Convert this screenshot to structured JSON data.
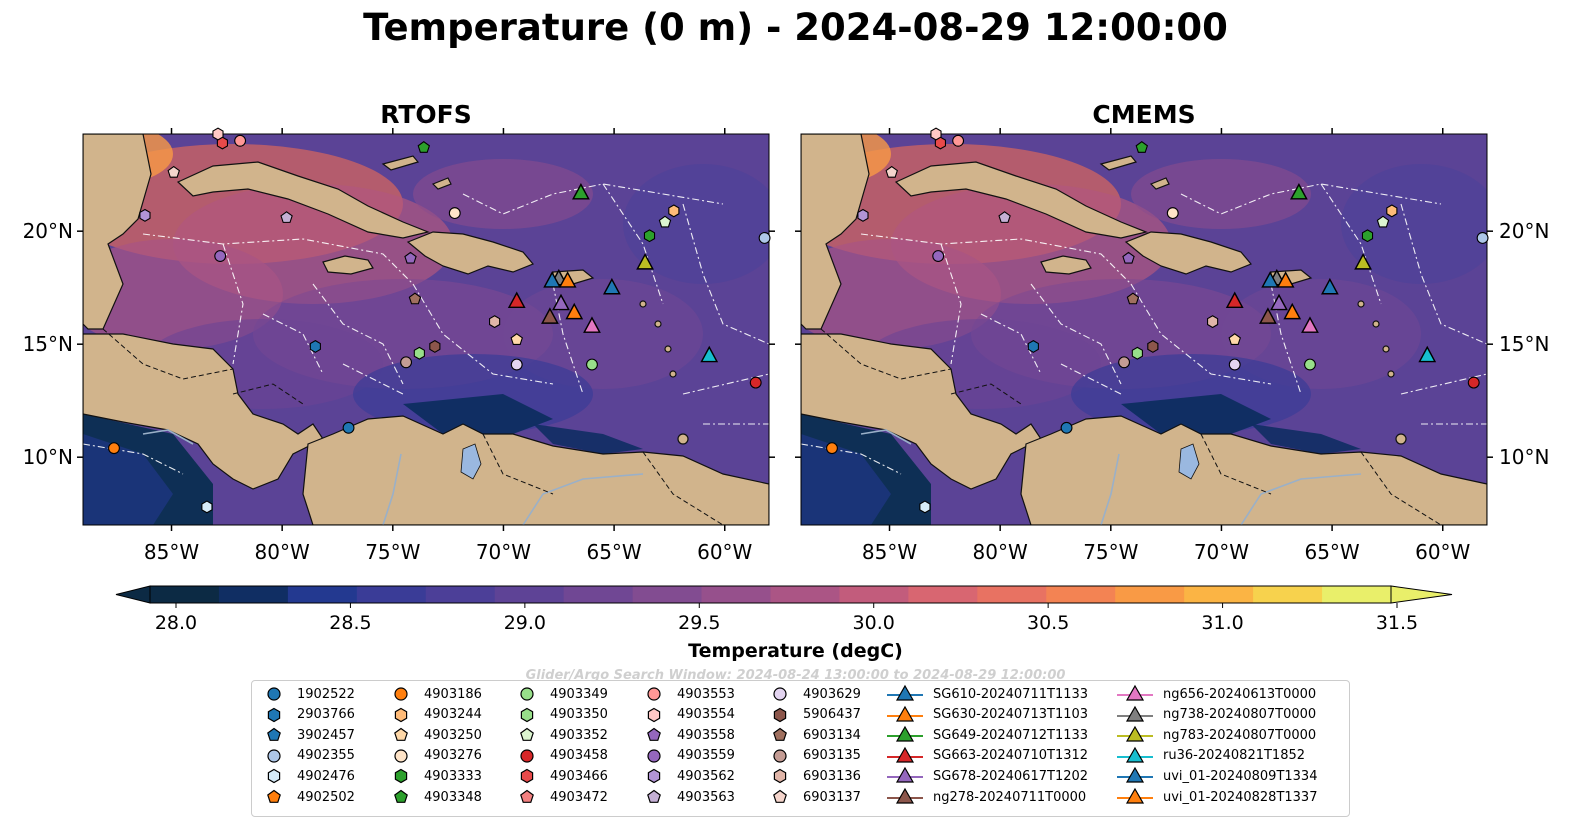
{
  "title": "Temperature (0 m) - 2024-08-29 12:00:00",
  "panels": [
    {
      "title": "RTOFS"
    },
    {
      "title": "CMEMS"
    }
  ],
  "lat_labels": [
    "20°N",
    "15°N",
    "10°N"
  ],
  "lon_labels": [
    "85°W",
    "80°W",
    "75°W",
    "70°W",
    "65°W",
    "60°W"
  ],
  "colorbar": {
    "label": "Temperature (degC)",
    "ticks": [
      "28.0",
      "28.5",
      "29.0",
      "29.5",
      "30.0",
      "30.5",
      "31.0",
      "31.5"
    ],
    "colors": [
      "#0c2a44",
      "#102e63",
      "#233990",
      "#3a3c97",
      "#4c3f98",
      "#5e4396",
      "#704794",
      "#824c91",
      "#96508c",
      "#ab5585",
      "#c25c7c",
      "#d86671",
      "#e87262",
      "#f38353",
      "#f99a45",
      "#fbb444",
      "#f7d24d",
      "#e9ef6a"
    ]
  },
  "search_window": "Glider/Argo Search Window: 2024-08-24 13:00:00 to 2024-08-29 12:00:00",
  "legend": [
    {
      "label": "1902522",
      "marker": "circle",
      "color": "#1f77b4"
    },
    {
      "label": "2903766",
      "marker": "hexagon",
      "color": "#1f77b4"
    },
    {
      "label": "3902457",
      "marker": "pentagon",
      "color": "#1f77b4"
    },
    {
      "label": "4902355",
      "marker": "circle",
      "color": "#aec7e8"
    },
    {
      "label": "4902476",
      "marker": "hexagon",
      "color": "#d6ebf8"
    },
    {
      "label": "4902502",
      "marker": "pentagon",
      "color": "#ff7f0e"
    },
    {
      "label": "4903186",
      "marker": "circle",
      "color": "#ff7f0e"
    },
    {
      "label": "4903244",
      "marker": "hexagon",
      "color": "#ffbb78"
    },
    {
      "label": "4903250",
      "marker": "pentagon",
      "color": "#ffd8a8"
    },
    {
      "label": "4903276",
      "marker": "circle",
      "color": "#ffe4c8"
    },
    {
      "label": "4903333",
      "marker": "hexagon",
      "color": "#2ca02c"
    },
    {
      "label": "4903348",
      "marker": "pentagon",
      "color": "#2ca02c"
    },
    {
      "label": "4903349",
      "marker": "circle",
      "color": "#98df8a"
    },
    {
      "label": "4903350",
      "marker": "hexagon",
      "color": "#98df8a"
    },
    {
      "label": "4903352",
      "marker": "pentagon",
      "color": "#dcf5d0"
    },
    {
      "label": "4903458",
      "marker": "circle",
      "color": "#d62728"
    },
    {
      "label": "4903466",
      "marker": "hexagon",
      "color": "#e84a4a"
    },
    {
      "label": "4903472",
      "marker": "pentagon",
      "color": "#f28080"
    },
    {
      "label": "4903553",
      "marker": "circle",
      "color": "#ff9896"
    },
    {
      "label": "4903554",
      "marker": "hexagon",
      "color": "#ffc8c6"
    },
    {
      "label": "4903558",
      "marker": "pentagon",
      "color": "#9467bd"
    },
    {
      "label": "4903559",
      "marker": "circle",
      "color": "#9467bd"
    },
    {
      "label": "4903562",
      "marker": "hexagon",
      "color": "#b294d6"
    },
    {
      "label": "4903563",
      "marker": "pentagon",
      "color": "#c5b0d5"
    },
    {
      "label": "4903629",
      "marker": "circle",
      "color": "#e3d4f0"
    },
    {
      "label": "5906437",
      "marker": "hexagon",
      "color": "#8c564b"
    },
    {
      "label": "6903134",
      "marker": "pentagon",
      "color": "#a0705f"
    },
    {
      "label": "6903135",
      "marker": "circle",
      "color": "#c49c94"
    },
    {
      "label": "6903136",
      "marker": "hexagon",
      "color": "#e0b5a8"
    },
    {
      "label": "6903137",
      "marker": "pentagon",
      "color": "#f5d5cc"
    },
    {
      "label": "SG610-20240711T1133",
      "marker": "triangle-line",
      "color": "#1f77b4"
    },
    {
      "label": "SG630-20240713T1103",
      "marker": "triangle-line",
      "color": "#ff7f0e"
    },
    {
      "label": "SG649-20240712T1133",
      "marker": "triangle-line",
      "color": "#2ca02c"
    },
    {
      "label": "SG663-20240710T1312",
      "marker": "triangle-line",
      "color": "#d62728"
    },
    {
      "label": "SG678-20240617T1202",
      "marker": "triangle-line",
      "color": "#9467bd"
    },
    {
      "label": "ng278-20240711T0000",
      "marker": "triangle-line",
      "color": "#8c564b"
    },
    {
      "label": "ng656-20240613T0000",
      "marker": "triangle-line",
      "color": "#e377c2"
    },
    {
      "label": "ng738-20240807T0000",
      "marker": "triangle-line",
      "color": "#7f7f7f"
    },
    {
      "label": "ng783-20240807T0000",
      "marker": "triangle-line",
      "color": "#bcbd22"
    },
    {
      "label": "ru36-20240821T1852",
      "marker": "triangle-line",
      "color": "#17becf"
    },
    {
      "label": "uvi_01-20240809T1334",
      "marker": "triangle-line",
      "color": "#1f77b4"
    },
    {
      "label": "uvi_01-20240828T1337",
      "marker": "triangle-line",
      "color": "#ff7f0e"
    }
  ],
  "platforms": [
    {
      "lon": -77.0,
      "lat": 11.3,
      "marker": "circle",
      "color": "#1f77b4"
    },
    {
      "lon": -78.5,
      "lat": 14.9,
      "marker": "hexagon",
      "color": "#1f77b4"
    },
    {
      "lon": -58.2,
      "lat": 19.7,
      "marker": "circle",
      "color": "#aec7e8"
    },
    {
      "lon": -83.4,
      "lat": 7.8,
      "marker": "hexagon",
      "color": "#d6ebf8"
    },
    {
      "lon": -87.6,
      "lat": 10.4,
      "marker": "circle",
      "color": "#ff7f0e"
    },
    {
      "lon": -62.3,
      "lat": 20.9,
      "marker": "hexagon",
      "color": "#ffbb78"
    },
    {
      "lon": -69.4,
      "lat": 15.2,
      "marker": "pentagon",
      "color": "#ffd8a8"
    },
    {
      "lon": -72.2,
      "lat": 20.8,
      "marker": "circle",
      "color": "#ffe4c8"
    },
    {
      "lon": -63.4,
      "lat": 19.8,
      "marker": "hexagon",
      "color": "#2ca02c"
    },
    {
      "lon": -73.6,
      "lat": 23.7,
      "marker": "pentagon",
      "color": "#2ca02c"
    },
    {
      "lon": -66.0,
      "lat": 14.1,
      "marker": "circle",
      "color": "#98df8a"
    },
    {
      "lon": -73.8,
      "lat": 14.6,
      "marker": "hexagon",
      "color": "#98df8a"
    },
    {
      "lon": -62.7,
      "lat": 20.4,
      "marker": "pentagon",
      "color": "#dcf5d0"
    },
    {
      "lon": -58.6,
      "lat": 13.3,
      "marker": "circle",
      "color": "#d62728"
    },
    {
      "lon": -82.7,
      "lat": 23.9,
      "marker": "hexagon",
      "color": "#e84a4a"
    },
    {
      "lon": -81.9,
      "lat": 24.0,
      "marker": "circle",
      "color": "#ff9896"
    },
    {
      "lon": -82.9,
      "lat": 24.3,
      "marker": "hexagon",
      "color": "#ffc8c6"
    },
    {
      "lon": -74.2,
      "lat": 18.8,
      "marker": "pentagon",
      "color": "#9467bd"
    },
    {
      "lon": -82.8,
      "lat": 18.9,
      "marker": "circle",
      "color": "#9467bd"
    },
    {
      "lon": -86.2,
      "lat": 20.7,
      "marker": "hexagon",
      "color": "#b294d6"
    },
    {
      "lon": -79.8,
      "lat": 20.6,
      "marker": "pentagon",
      "color": "#c5b0d5"
    },
    {
      "lon": -69.4,
      "lat": 14.1,
      "marker": "circle",
      "color": "#e3d4f0"
    },
    {
      "lon": -73.1,
      "lat": 14.9,
      "marker": "hexagon",
      "color": "#8c564b"
    },
    {
      "lon": -74.0,
      "lat": 17.0,
      "marker": "pentagon",
      "color": "#a0705f"
    },
    {
      "lon": -74.4,
      "lat": 14.2,
      "marker": "circle",
      "color": "#c49c94"
    },
    {
      "lon": -70.4,
      "lat": 16.0,
      "marker": "hexagon",
      "color": "#e0b5a8"
    },
    {
      "lon": -84.9,
      "lat": 22.6,
      "marker": "pentagon",
      "color": "#f5d5cc"
    },
    {
      "lon": -65.1,
      "lat": 17.5,
      "marker": "triangle",
      "color": "#1f77b4"
    },
    {
      "lon": -66.8,
      "lat": 16.4,
      "marker": "triangle",
      "color": "#ff7f0e"
    },
    {
      "lon": -66.5,
      "lat": 21.7,
      "marker": "triangle",
      "color": "#2ca02c"
    },
    {
      "lon": -69.4,
      "lat": 16.9,
      "marker": "triangle",
      "color": "#d62728"
    },
    {
      "lon": -67.4,
      "lat": 16.8,
      "marker": "triangle",
      "color": "#9467bd"
    },
    {
      "lon": -67.9,
      "lat": 16.2,
      "marker": "triangle",
      "color": "#8c564b"
    },
    {
      "lon": -66.0,
      "lat": 15.8,
      "marker": "triangle",
      "color": "#e377c2"
    },
    {
      "lon": -67.5,
      "lat": 17.9,
      "marker": "triangle",
      "color": "#7f7f7f"
    },
    {
      "lon": -63.6,
      "lat": 18.6,
      "marker": "triangle",
      "color": "#bcbd22"
    },
    {
      "lon": -60.7,
      "lat": 14.5,
      "marker": "triangle",
      "color": "#17becf"
    },
    {
      "lon": -67.8,
      "lat": 17.8,
      "marker": "triangle",
      "color": "#1f77b4"
    },
    {
      "lon": -67.1,
      "lat": 17.8,
      "marker": "triangle",
      "color": "#ff7f0e"
    }
  ]
}
